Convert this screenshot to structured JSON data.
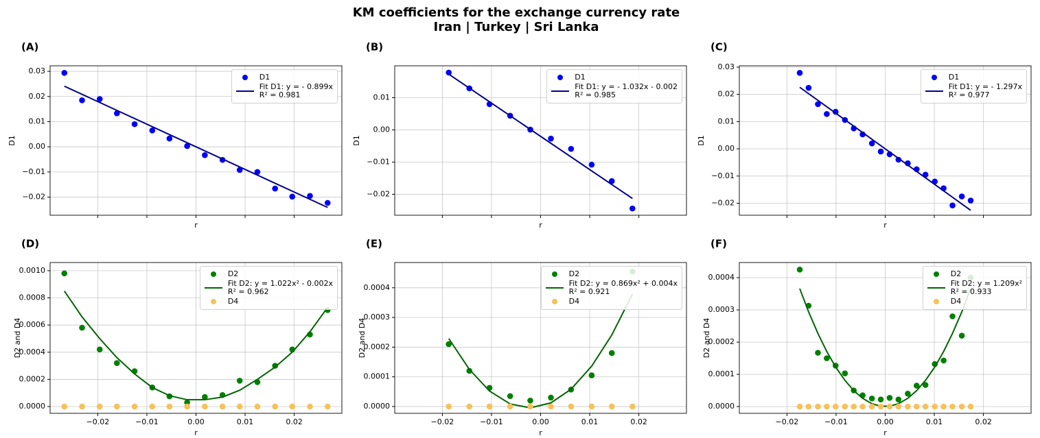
{
  "title": "KM coefficients for the exchange currency rate",
  "subtitle": "Iran | Turkey | Sri Lanka",
  "chart_data": [
    {
      "type": "scatter",
      "panel_label": "(A)",
      "xlabel": "r",
      "ylabel": "D1",
      "grid": true,
      "legend": "upper right",
      "xlim": [
        -0.0297,
        0.0297
      ],
      "xticks": [
        -0.02,
        -0.01,
        0,
        0.01,
        0.02
      ],
      "xtick_labels": false,
      "ylim": [
        -0.0272,
        0.0322
      ],
      "yticks": [
        {
          "value": -0.02,
          "label": "−0.02"
        },
        {
          "value": -0.01,
          "label": "−0.01"
        },
        {
          "value": 0,
          "label": "0.00"
        },
        0.01,
        0.02,
        0.03
      ],
      "x": [
        -0.0268,
        -0.0232,
        -0.0196,
        -0.0161,
        -0.0125,
        -0.0089,
        -0.0054,
        -0.0018,
        0.0018,
        0.0054,
        0.0089,
        0.0125,
        0.0161,
        0.0196,
        0.0232,
        0.0268
      ],
      "series": [
        {
          "name": "D1",
          "type": "scatter",
          "color": "#0000ff",
          "values": [
            0.0294,
            0.0185,
            0.019,
            0.0133,
            0.009,
            0.0065,
            0.0033,
            0.0003,
            -0.0033,
            -0.0052,
            -0.0092,
            -0.01,
            -0.0166,
            -0.0198,
            -0.0195,
            -0.0223
          ]
        },
        {
          "name": "Fit D1: y = - 0.899x\nR² = 0.981",
          "type": "line",
          "color": "#00008b",
          "x": [
            -0.0268,
            0.0268
          ],
          "values": [
            0.0241,
            -0.0241
          ]
        }
      ]
    },
    {
      "type": "scatter",
      "panel_label": "(B)",
      "xlabel": "r",
      "ylabel": "D1",
      "grid": true,
      "legend": "upper right",
      "xlim": [
        -0.0297,
        0.0297
      ],
      "xticks": [
        -0.02,
        -0.01,
        0,
        0.01,
        0.02
      ],
      "xtick_labels": false,
      "ylim": [
        -0.0265,
        0.0199
      ],
      "yticks": [
        {
          "value": -0.02,
          "label": "−0.02"
        },
        {
          "value": -0.01,
          "label": "−0.01"
        },
        {
          "value": 0,
          "label": "0.00"
        },
        0.01
      ],
      "x": [
        -0.0187,
        -0.0145,
        -0.0104,
        -0.0062,
        -0.0021,
        0.0021,
        0.0062,
        0.0104,
        0.0145,
        0.0187
      ],
      "series": [
        {
          "name": "D1",
          "type": "scatter",
          "color": "#0000ff",
          "values": [
            0.0178,
            0.0129,
            0.008,
            0.0044,
            0.0001,
            -0.0027,
            -0.0059,
            -0.0108,
            -0.0159,
            -0.0244
          ]
        },
        {
          "name": "Fit D1: y = - 1.032x - 0.002\nR² = 0.985",
          "type": "line",
          "color": "#00008b",
          "x": [
            -0.0187,
            0.0187
          ],
          "values": [
            0.0173,
            -0.0213
          ]
        }
      ]
    },
    {
      "type": "scatter",
      "panel_label": "(C)",
      "xlabel": "r",
      "ylabel": "D1",
      "grid": true,
      "legend": "upper right",
      "xlim": [
        -0.0297,
        0.0297
      ],
      "xticks": [
        -0.02,
        -0.01,
        0,
        0.01,
        0.02
      ],
      "xtick_labels": false,
      "ylim": [
        -0.0244,
        0.0305
      ],
      "yticks": [
        {
          "value": -0.02,
          "label": "−0.02"
        },
        {
          "value": -0.01,
          "label": "−0.01"
        },
        {
          "value": 0,
          "label": "0.00"
        },
        0.01,
        0.02,
        0.03
      ],
      "x": [
        -0.0174,
        -0.0156,
        -0.0137,
        -0.0119,
        -0.0101,
        -0.0082,
        -0.0064,
        -0.0046,
        -0.0027,
        -0.0009,
        0.0009,
        0.0027,
        0.0046,
        0.0064,
        0.0082,
        0.0101,
        0.0119,
        0.0137,
        0.0156,
        0.0174
      ],
      "series": [
        {
          "name": "D1",
          "type": "scatter",
          "color": "#0000ff",
          "values": [
            0.0279,
            0.0224,
            0.0164,
            0.0128,
            0.0136,
            0.0106,
            0.0075,
            0.0053,
            0.002,
            -0.001,
            -0.002,
            -0.004,
            -0.0053,
            -0.0075,
            -0.0095,
            -0.012,
            -0.0145,
            -0.0208,
            -0.0175,
            -0.019
          ]
        },
        {
          "name": "Fit D1: y = - 1.297x\nR² = 0.977",
          "type": "line",
          "color": "#00008b",
          "x": [
            -0.0174,
            0.0174
          ],
          "values": [
            0.0226,
            -0.0226
          ]
        }
      ]
    },
    {
      "type": "scatter",
      "panel_label": "(D)",
      "xlabel": "r",
      "ylabel": "D2 and D4",
      "grid": true,
      "legend": "upper right",
      "xlim": [
        -0.0297,
        0.0297
      ],
      "xticks": [
        {
          "value": -0.02,
          "label": "−0.02"
        },
        {
          "value": -0.01,
          "label": "−0.01"
        },
        {
          "value": 0,
          "label": "0.00"
        },
        0.01,
        0.02
      ],
      "ylim": [
        -5e-05,
        0.00106
      ],
      "yticks": [
        {
          "value": 0,
          "label": "0.0000"
        },
        0.0002,
        0.0004,
        0.0006,
        0.0008,
        {
          "value": 0.001,
          "label": "0.0010"
        }
      ],
      "x": [
        -0.0268,
        -0.0232,
        -0.0196,
        -0.0161,
        -0.0125,
        -0.0089,
        -0.0054,
        -0.0018,
        0.0018,
        0.0054,
        0.0089,
        0.0125,
        0.0161,
        0.0196,
        0.0232,
        0.0268
      ],
      "series": [
        {
          "name": "D2",
          "type": "scatter",
          "color": "#008000",
          "values": [
            0.00098,
            0.00058,
            0.00042,
            0.00032,
            0.00026,
            0.00014,
            7.5e-05,
            3e-05,
            7e-05,
            8.5e-05,
            0.00019,
            0.00018,
            0.0003,
            0.00042,
            0.00053,
            0.00071
          ]
        },
        {
          "name": "Fit D2: y = 1.022x² - 0.002x\nR² = 0.962",
          "type": "line",
          "color": "#006400",
          "values": [
            0.00085,
            0.00066,
            0.0005,
            0.00036,
            0.00024,
            0.00014,
            8e-05,
            5e-05,
            5e-05,
            7e-05,
            0.00012,
            0.0002,
            0.00029,
            0.0004,
            0.00055,
            0.00073
          ]
        },
        {
          "name": "D4",
          "type": "scatter",
          "color": "#f7c15a",
          "values": [
            0,
            0,
            0,
            0,
            0,
            0,
            0,
            0,
            0,
            0,
            0,
            0,
            0,
            0,
            0,
            0
          ]
        }
      ]
    },
    {
      "type": "scatter",
      "panel_label": "(E)",
      "xlabel": "r",
      "ylabel": "D2 and D4",
      "grid": true,
      "legend": "upper right",
      "xlim": [
        -0.0297,
        0.0297
      ],
      "xticks": [
        {
          "value": -0.02,
          "label": "−0.02"
        },
        {
          "value": -0.01,
          "label": "−0.01"
        },
        {
          "value": 0,
          "label": "0.00"
        },
        0.01,
        0.02
      ],
      "ylim": [
        -2.3e-05,
        0.000485
      ],
      "yticks": [
        {
          "value": 0,
          "label": "0.0000"
        },
        0.0001,
        0.0002,
        0.0003,
        0.0004
      ],
      "x": [
        -0.0187,
        -0.0145,
        -0.0104,
        -0.0062,
        -0.0021,
        0.0021,
        0.0062,
        0.0104,
        0.0145,
        0.0187
      ],
      "series": [
        {
          "name": "D2",
          "type": "scatter",
          "color": "#008000",
          "values": [
            0.00021,
            0.00012,
            6.3e-05,
            3.5e-05,
            2e-05,
            3e-05,
            5.7e-05,
            0.000105,
            0.00018,
            0.000455
          ]
        },
        {
          "name": "Fit D2: y = 0.869x² + 0.004x\nR² = 0.921",
          "type": "line",
          "color": "#006400",
          "values": [
            0.000229,
            0.000125,
            5.2e-05,
            8.6e-06,
            -4.6e-06,
            1.22e-05,
            5.82e-05,
            0.000136,
            0.000241,
            0.000379
          ]
        },
        {
          "name": "D4",
          "type": "scatter",
          "color": "#f7c15a",
          "values": [
            0,
            0,
            0,
            0,
            0,
            0,
            0,
            0,
            0,
            0
          ]
        }
      ]
    },
    {
      "type": "scatter",
      "panel_label": "(F)",
      "xlabel": "r",
      "ylabel": "D2 and D4",
      "grid": true,
      "legend": "upper right",
      "xlim": [
        -0.0297,
        0.0297
      ],
      "xticks": [
        {
          "value": -0.02,
          "label": "−0.02"
        },
        {
          "value": -0.01,
          "label": "−0.01"
        },
        {
          "value": 0,
          "label": "0.00"
        },
        0.01,
        0.02
      ],
      "ylim": [
        -2.1e-05,
        0.000447
      ],
      "yticks": [
        {
          "value": 0,
          "label": "0.0000"
        },
        0.0001,
        0.0002,
        0.0003,
        0.0004
      ],
      "x": [
        -0.0174,
        -0.0156,
        -0.0137,
        -0.0119,
        -0.0101,
        -0.0082,
        -0.0064,
        -0.0046,
        -0.0027,
        -0.0009,
        0.0009,
        0.0027,
        0.0046,
        0.0064,
        0.0082,
        0.0101,
        0.0119,
        0.0137,
        0.0156,
        0.0174
      ],
      "series": [
        {
          "name": "D2",
          "type": "scatter",
          "color": "#008000",
          "values": [
            0.000425,
            0.000313,
            0.000167,
            0.00015,
            0.000127,
            0.000103,
            5e-05,
            3.5e-05,
            2.5e-05,
            2.2e-05,
            2.7e-05,
            2.2e-05,
            4e-05,
            6.5e-05,
            6.7e-05,
            0.000132,
            0.000143,
            0.00028,
            0.00022,
            0.0004
          ]
        },
        {
          "name": "Fit D2: y = 1.209x²\nR² = 0.933",
          "type": "line",
          "color": "#006400",
          "values": [
            0.000366,
            0.000294,
            0.000227,
            0.000171,
            0.000123,
            8.13e-05,
            4.95e-05,
            2.56e-05,
            8.8e-06,
            1e-06,
            1e-06,
            8.8e-06,
            2.56e-05,
            4.95e-05,
            8.13e-05,
            0.000123,
            0.000171,
            0.000227,
            0.000294,
            0.000366
          ]
        },
        {
          "name": "D4",
          "type": "scatter",
          "color": "#f7c15a",
          "values": [
            0,
            0,
            0,
            0,
            0,
            0,
            0,
            0,
            0,
            0,
            0,
            0,
            0,
            0,
            0,
            0,
            0,
            0,
            0,
            0
          ]
        }
      ]
    }
  ]
}
